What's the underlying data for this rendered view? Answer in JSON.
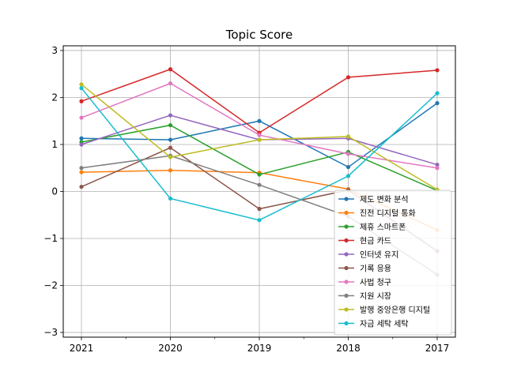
{
  "chart_data": {
    "type": "line",
    "title": "Topic Score",
    "xlabel": "",
    "ylabel": "",
    "categories": [
      "2021",
      "2020",
      "2019",
      "2018",
      "2017"
    ],
    "ylim": [
      -3.1,
      3.1
    ],
    "yticks": [
      3,
      2,
      1,
      0,
      -1,
      -2,
      -3
    ],
    "ytick_labels": [
      "3",
      "2",
      "1",
      "0",
      "−1",
      "−2",
      "−3"
    ],
    "grid": true,
    "legend_position": "lower right",
    "series": [
      {
        "name": "제도 변화 분석",
        "color": "#1f77b4",
        "values": [
          1.13,
          1.1,
          1.5,
          0.52,
          1.88
        ]
      },
      {
        "name": "진전 디지털 통화",
        "color": "#ff7f0e",
        "values": [
          0.41,
          0.45,
          0.4,
          0.05,
          -0.82
        ]
      },
      {
        "name": "제휴 스마트폰",
        "color": "#2ca02c",
        "values": [
          1.05,
          1.41,
          0.36,
          0.84,
          0.02
        ]
      },
      {
        "name": "현금 카드",
        "color": "#d62728",
        "values": [
          1.92,
          2.6,
          1.25,
          2.43,
          2.58
        ]
      },
      {
        "name": "인터넷 유지",
        "color": "#9467bd",
        "values": [
          1.0,
          1.62,
          1.1,
          1.13,
          0.57
        ]
      },
      {
        "name": "기록 응용",
        "color": "#8c564b",
        "values": [
          0.1,
          0.93,
          -0.37,
          0.03,
          -1.27
        ]
      },
      {
        "name": "사법 청구",
        "color": "#e377c2",
        "values": [
          1.57,
          2.3,
          1.2,
          0.8,
          0.5
        ]
      },
      {
        "name": "지원 시장",
        "color": "#7f7f7f",
        "values": [
          0.5,
          0.76,
          0.14,
          -0.53,
          -1.77
        ]
      },
      {
        "name": "발행 중앙은행 디지털",
        "color": "#bcbd22",
        "values": [
          2.28,
          0.73,
          1.1,
          1.17,
          0.04
        ]
      },
      {
        "name": "자금 세탁 세탁",
        "color": "#17becf",
        "values": [
          2.2,
          -0.15,
          -0.61,
          0.33,
          2.09
        ]
      }
    ]
  }
}
